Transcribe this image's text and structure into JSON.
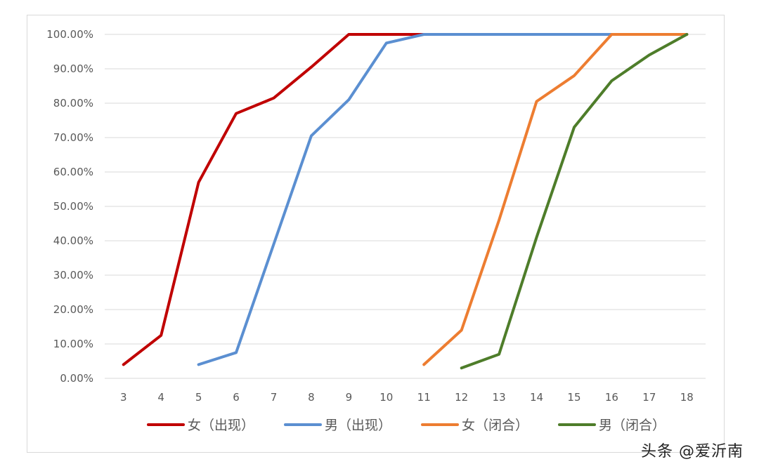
{
  "chart_data": {
    "type": "line",
    "title": "",
    "xlabel": "",
    "ylabel": "",
    "categories": [
      "3",
      "4",
      "5",
      "6",
      "7",
      "8",
      "9",
      "10",
      "11",
      "12",
      "13",
      "14",
      "15",
      "16",
      "17",
      "18"
    ],
    "y_tick_labels": [
      "0.00%",
      "10.00%",
      "20.00%",
      "30.00%",
      "40.00%",
      "50.00%",
      "60.00%",
      "70.00%",
      "80.00%",
      "90.00%",
      "100.00%"
    ],
    "ylim": [
      0,
      100
    ],
    "grid": true,
    "legend_position": "bottom",
    "series": [
      {
        "name": "女（出现）",
        "color": "#c00000",
        "points": [
          [
            3,
            4
          ],
          [
            4,
            12.5
          ],
          [
            5,
            57
          ],
          [
            6,
            77
          ],
          [
            7,
            81.5
          ],
          [
            8,
            90.5
          ],
          [
            9,
            100
          ],
          [
            10,
            100
          ],
          [
            11,
            100
          ],
          [
            12,
            100
          ],
          [
            13,
            100
          ],
          [
            14,
            100
          ],
          [
            15,
            100
          ],
          [
            16,
            100
          ],
          [
            17,
            100
          ],
          [
            18,
            100
          ]
        ]
      },
      {
        "name": "男（出现）",
        "color": "#5b8fd1",
        "points": [
          [
            5,
            4
          ],
          [
            6,
            7.5
          ],
          [
            7,
            39
          ],
          [
            8,
            70.5
          ],
          [
            9,
            81
          ],
          [
            10,
            97.5
          ],
          [
            11,
            100
          ],
          [
            12,
            100
          ],
          [
            13,
            100
          ],
          [
            14,
            100
          ],
          [
            15,
            100
          ],
          [
            16,
            100
          ],
          [
            17,
            100
          ],
          [
            18,
            100
          ]
        ]
      },
      {
        "name": "女（闭合）",
        "color": "#ed7d31",
        "points": [
          [
            11,
            4
          ],
          [
            12,
            14
          ],
          [
            13,
            46
          ],
          [
            14,
            80.5
          ],
          [
            15,
            88
          ],
          [
            16,
            100
          ],
          [
            17,
            100
          ],
          [
            18,
            100
          ]
        ]
      },
      {
        "name": "男（闭合）",
        "color": "#4e7d2a",
        "points": [
          [
            12,
            3
          ],
          [
            13,
            7
          ],
          [
            14,
            41
          ],
          [
            15,
            73
          ],
          [
            16,
            86.5
          ],
          [
            17,
            94
          ],
          [
            18,
            100
          ]
        ]
      }
    ]
  },
  "watermark": {
    "text": "头条 @爱沂南"
  }
}
